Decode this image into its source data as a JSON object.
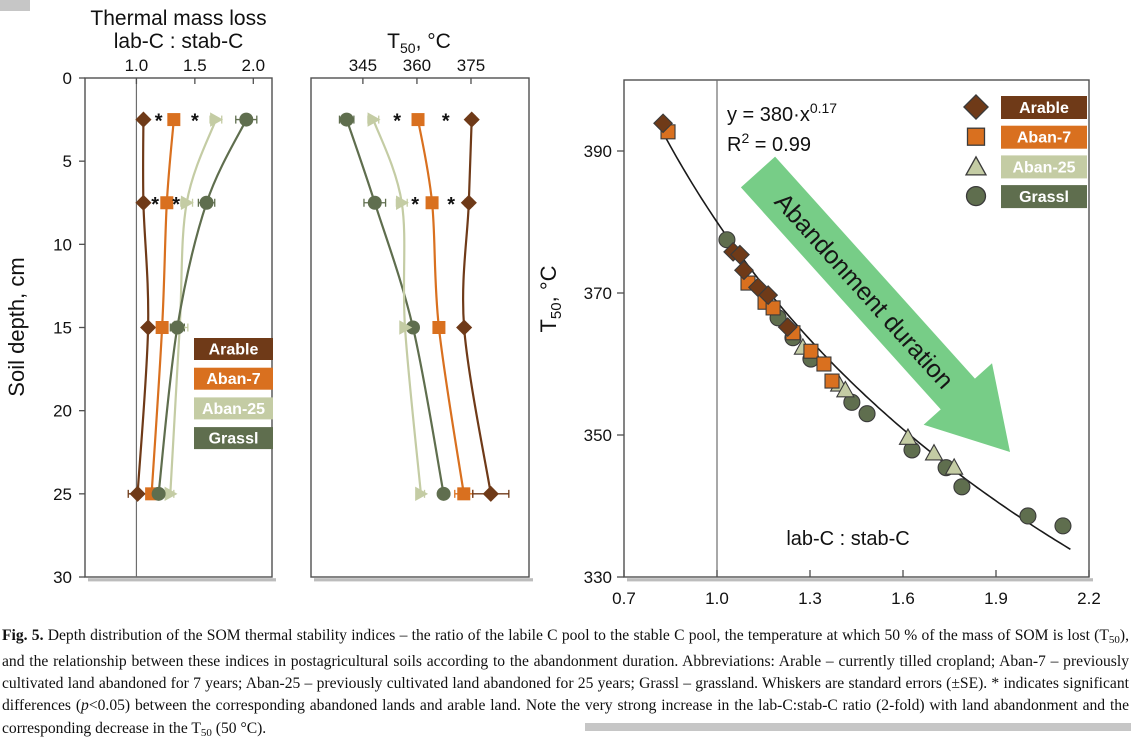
{
  "colors": {
    "frame": "#4f4f4f",
    "arable": "#6F3A18",
    "aban7": "#D9701F",
    "aban25": "#C4CCA4",
    "grassl": "#5F6E4E",
    "arrow_green": "#77CD87",
    "marker_stroke": "#3A3A3A",
    "refline": "#6E6E6E",
    "text": "#111111",
    "legend_text": "#FFFFFF",
    "fit_line": "#1A1A1A",
    "artifact_gray": "#C6C6C6"
  },
  "chart_data": [
    {
      "type": "line",
      "id": "thermal-ratio-depth-profile",
      "title_lines": [
        "Thermal mass loss",
        "lab-C : stab-C"
      ],
      "ylabel": "Soil depth, cm",
      "xlim": [
        0.56,
        2.16
      ],
      "xticks": [
        "1.0",
        "1.5",
        "2.0"
      ],
      "xtick_vals": [
        1.0,
        1.5,
        2.0
      ],
      "ylim": [
        0,
        30
      ],
      "yticks": [
        0,
        5,
        10,
        15,
        20,
        25,
        30
      ],
      "refline_x": 1.0,
      "depths": [
        2.5,
        7.5,
        15,
        25
      ],
      "series": [
        {
          "name": "Arable",
          "color_key": "arable",
          "marker": "diamond",
          "values": [
            1.06,
            1.06,
            1.1,
            1.01
          ],
          "se": [
            0.02,
            0.02,
            0.02,
            0.08
          ]
        },
        {
          "name": "Aban-7",
          "color_key": "aban7",
          "marker": "square",
          "values": [
            1.32,
            1.26,
            1.22,
            1.13
          ],
          "se": [
            0.03,
            0.04,
            0.03,
            0.03
          ]
        },
        {
          "name": "Aban-25",
          "color_key": "aban25",
          "marker": "triangle-right",
          "values": [
            1.68,
            1.43,
            1.37,
            1.29
          ],
          "se": [
            0.05,
            0.05,
            0.07,
            0.03
          ]
        },
        {
          "name": "Grassl",
          "color_key": "grassl",
          "marker": "circle",
          "values": [
            1.94,
            1.6,
            1.35,
            1.19
          ],
          "se": [
            0.09,
            0.07,
            0.06,
            0.03
          ]
        }
      ],
      "asterisks": [
        {
          "x": 1.19,
          "depth": 2.5
        },
        {
          "x": 1.5,
          "depth": 2.5
        },
        {
          "x": 1.16,
          "depth": 7.5
        },
        {
          "x": 1.34,
          "depth": 7.5
        }
      ],
      "legend": {
        "items": [
          "Arable",
          "Aban-7",
          "Aban-25",
          "Grassl"
        ]
      }
    },
    {
      "type": "line",
      "id": "t50-depth-profile",
      "title_parts": {
        "base": "T",
        "sub": "50",
        "rest": ", °C"
      },
      "xlim": [
        330.6,
        391.1
      ],
      "xticks": [
        "345",
        "360",
        "375"
      ],
      "xtick_vals": [
        345,
        360,
        375
      ],
      "ylim": [
        0,
        30
      ],
      "yticks": [],
      "depths": [
        2.5,
        7.5,
        15,
        25
      ],
      "series": [
        {
          "name": "Grassl",
          "color_key": "grassl",
          "marker": "circle",
          "values": [
            340.5,
            348.3,
            358.9,
            367.4
          ],
          "se": [
            2.0,
            3.0,
            1.5,
            1.0
          ]
        },
        {
          "name": "Aban-25",
          "color_key": "aban25",
          "marker": "triangle-right",
          "values": [
            347.9,
            355.8,
            356.7,
            361.1
          ],
          "se": [
            1.5,
            1.5,
            1.0,
            1.0
          ]
        },
        {
          "name": "Aban-7",
          "color_key": "aban7",
          "marker": "square",
          "values": [
            360.3,
            364.2,
            366.1,
            373.0
          ],
          "se": [
            1.0,
            1.5,
            1.5,
            2.5
          ]
        },
        {
          "name": "Arable",
          "color_key": "arable",
          "marker": "diamond",
          "values": [
            375.2,
            374.4,
            373.1,
            380.5
          ],
          "se": [
            1.0,
            1.0,
            1.0,
            5.0
          ]
        }
      ],
      "asterisks": [
        {
          "x": 354.5,
          "depth": 2.5
        },
        {
          "x": 368.0,
          "depth": 2.5
        },
        {
          "x": 359.5,
          "depth": 7.5
        },
        {
          "x": 369.5,
          "depth": 7.5
        }
      ]
    },
    {
      "type": "scatter",
      "id": "t50-vs-ratio-scatter",
      "equation": {
        "lhs": "y = 380·x",
        "exp": "0.17",
        "r2_base": "R",
        "r2_exp": "2",
        "r2_rest": " = 0.99"
      },
      "ylabel_parts": {
        "base": "T",
        "sub": "50",
        "rest": ", °C"
      },
      "x_annotation": "lab-C : stab-C",
      "xlim": [
        0.7,
        2.2
      ],
      "xticks": [
        "0.7",
        "1.0",
        "1.3",
        "1.6",
        "1.9",
        "2.2"
      ],
      "xtick_vals": [
        0.7,
        1.0,
        1.3,
        1.6,
        1.9,
        2.2
      ],
      "ylim": [
        330,
        400
      ],
      "yticks": [
        330,
        350,
        370,
        390
      ],
      "refline_x": 1.0,
      "fit": {
        "a": 380,
        "b": -0.17,
        "x_start": 0.81,
        "x_end": 2.14
      },
      "arrow": {
        "label": "Abandonment duration"
      },
      "series": [
        {
          "name": "Arable",
          "color_key": "arable",
          "marker": "diamond",
          "points": [
            [
              0.826,
              393.9
            ],
            [
              1.052,
              375.8
            ],
            [
              1.074,
              375.4
            ],
            [
              1.087,
              373.2
            ],
            [
              1.132,
              370.8
            ],
            [
              1.165,
              369.7
            ],
            [
              1.228,
              365.2
            ]
          ]
        },
        {
          "name": "Aban-7",
          "color_key": "aban7",
          "marker": "square",
          "points": [
            [
              0.842,
              392.7
            ],
            [
              1.1,
              371.4
            ],
            [
              1.155,
              368.7
            ],
            [
              1.181,
              367.9
            ],
            [
              1.245,
              364.4
            ],
            [
              1.303,
              361.8
            ],
            [
              1.345,
              360.0
            ],
            [
              1.371,
              357.6
            ]
          ]
        },
        {
          "name": "Aban-25",
          "color_key": "aban25",
          "marker": "triangle-up",
          "points": [
            [
              1.277,
              362.4
            ],
            [
              1.394,
              357.2
            ],
            [
              1.414,
              356.4
            ],
            [
              1.616,
              349.7
            ],
            [
              1.7,
              347.5
            ],
            [
              1.765,
              345.5
            ]
          ]
        },
        {
          "name": "Grassl",
          "color_key": "grassl",
          "marker": "circle",
          "points": [
            [
              1.032,
              377.5
            ],
            [
              1.197,
              366.5
            ],
            [
              1.245,
              363.7
            ],
            [
              1.303,
              360.7
            ],
            [
              1.435,
              354.6
            ],
            [
              1.484,
              353.0
            ],
            [
              1.629,
              347.9
            ],
            [
              1.739,
              345.4
            ],
            [
              1.79,
              342.7
            ],
            [
              2.003,
              338.6
            ],
            [
              2.116,
              337.2
            ]
          ]
        }
      ],
      "legend": {
        "items": [
          {
            "label": "Arable",
            "marker": "diamond",
            "color_key": "arable"
          },
          {
            "label": "Aban-7",
            "marker": "square",
            "color_key": "aban7"
          },
          {
            "label": "Aban-25",
            "marker": "triangle-up",
            "color_key": "aban25"
          },
          {
            "label": "Grassl",
            "marker": "circle",
            "color_key": "grassl"
          }
        ]
      }
    }
  ],
  "caption": {
    "segments": [
      {
        "t": "Fig. 5.",
        "b": true
      },
      {
        "t": " Depth distribution of the SOM thermal stability indices – the ratio of the labile C pool to the stable C pool, the temperature at which 50 % of the mass of SOM is lost (T"
      },
      {
        "t": "50",
        "sub": true
      },
      {
        "t": "), and the relationship between these indices in postagricultural soils according to the abandonment duration. Abbreviations: Arable – currently tilled cropland; Aban-7 – previously cultivated land abandoned for 7 years; Aban-25 – previously cultivated land abandoned for 25 years; Grassl – grassland. Whiskers are standard errors (±SE). * indicates significant differences ("
      },
      {
        "t": "p",
        "i": true
      },
      {
        "t": "<0.05) between the corresponding abandoned lands and arable land. Note the very strong increase in the lab-C:stab-C ratio (2-fold) with land abandonment and the corresponding decrease in the T"
      },
      {
        "t": "50",
        "sub": true
      },
      {
        "t": " (50 °C)."
      }
    ]
  }
}
